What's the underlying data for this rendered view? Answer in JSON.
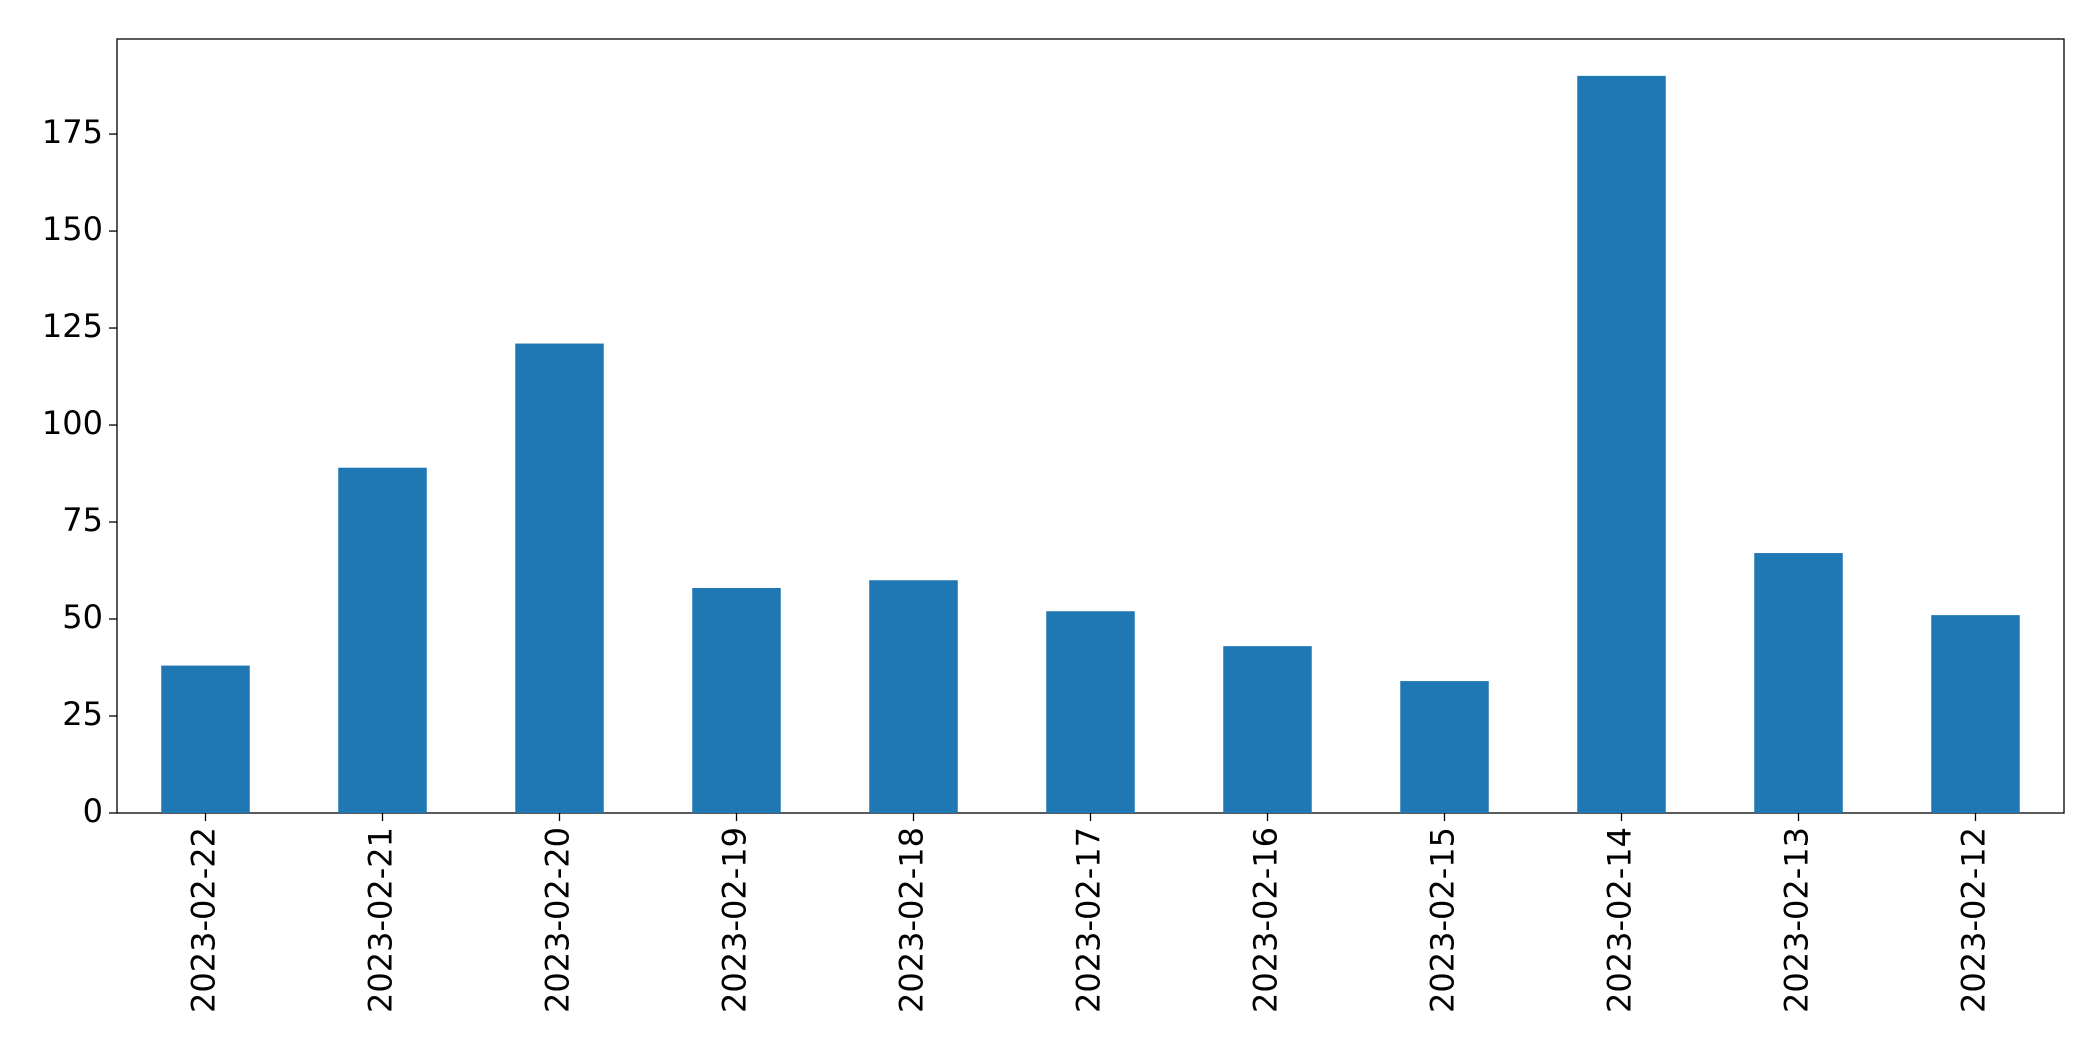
{
  "chart_data": {
    "type": "bar",
    "categories": [
      "2023-02-22",
      "2023-02-21",
      "2023-02-20",
      "2023-02-19",
      "2023-02-18",
      "2023-02-17",
      "2023-02-16",
      "2023-02-15",
      "2023-02-14",
      "2023-02-13",
      "2023-02-12"
    ],
    "values": [
      38,
      89,
      121,
      58,
      60,
      52,
      43,
      34,
      190,
      67,
      51
    ],
    "color": "#1f77b4",
    "ylim": [
      0,
      199.5
    ],
    "yticks": [
      0,
      25,
      50,
      75,
      100,
      125,
      150,
      175
    ],
    "grid": false
  }
}
